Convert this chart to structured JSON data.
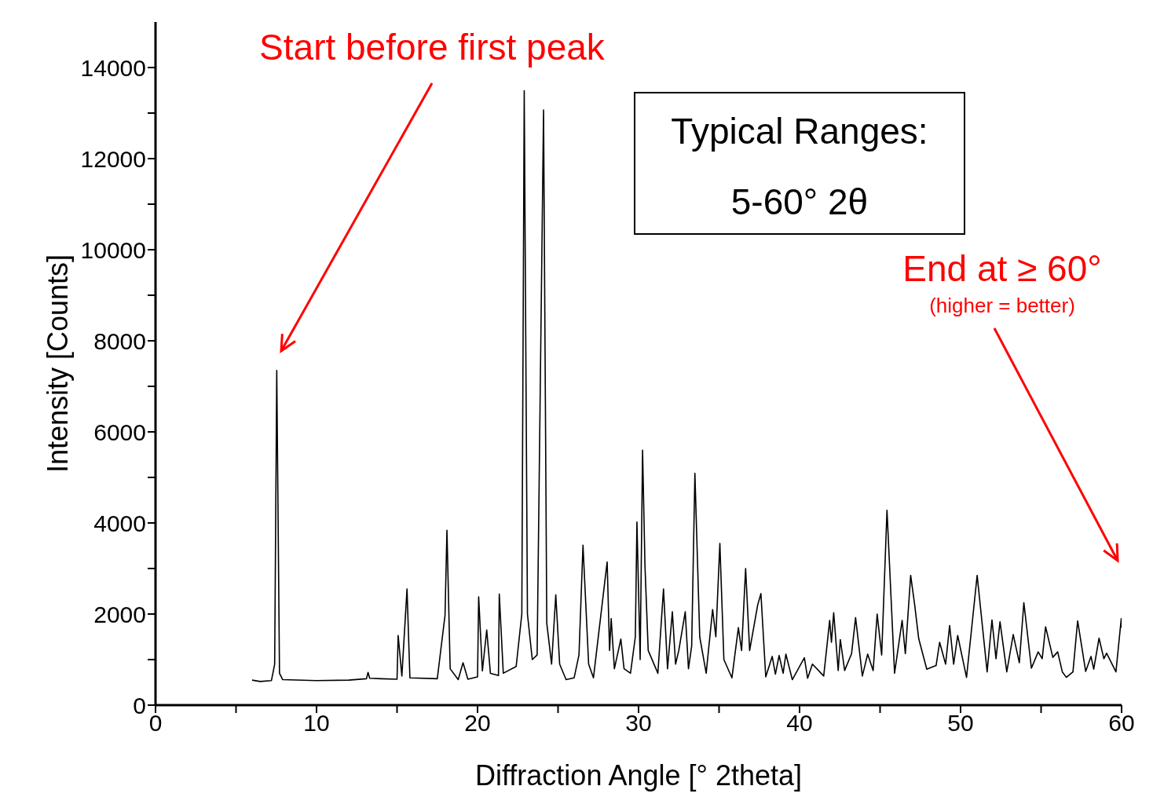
{
  "chart_data": {
    "type": "line",
    "xlabel": "Diffraction Angle [° 2theta]",
    "ylabel": "Intensity [Counts]",
    "xlim": [
      0,
      60
    ],
    "xticks": [
      0,
      {
        "value": 5,
        "label": null
      },
      10,
      {
        "value": 15,
        "label": null
      },
      20,
      {
        "value": 25,
        "label": null
      },
      30,
      {
        "value": 35,
        "label": null
      },
      40,
      {
        "value": 45,
        "label": null
      },
      50,
      {
        "value": 55,
        "label": null
      },
      60
    ],
    "ylim": [
      0,
      15000
    ],
    "yticks": [
      0,
      {
        "value": 1000,
        "label": null
      },
      2000,
      {
        "value": 3000,
        "label": null
      },
      4000,
      {
        "value": 5000,
        "label": null
      },
      6000,
      {
        "value": 7000,
        "label": null
      },
      8000,
      {
        "value": 9000,
        "label": null
      },
      10000,
      {
        "value": 11000,
        "label": null
      },
      12000,
      {
        "value": 13000,
        "label": null
      },
      14000
    ],
    "marker": "none",
    "line_style": "solid",
    "annotations": [
      "Start before first peak",
      "End at ≥ 60°",
      "(higher = better)",
      "Typical Ranges:",
      "5-60° 2θ"
    ],
    "series": [
      {
        "color": "#000000",
        "x": [
          6.0,
          6.5,
          7.2,
          7.4,
          7.53,
          7.7,
          7.9,
          10.0,
          12.0,
          13.1,
          13.2,
          13.3,
          14.0,
          15.0,
          15.07,
          15.3,
          15.62,
          15.8,
          17.5,
          17.98,
          18.1,
          18.3,
          18.8,
          19.1,
          19.4,
          20.0,
          20.07,
          20.3,
          20.57,
          20.8,
          21.3,
          21.35,
          21.6,
          22.4,
          22.75,
          22.9,
          23.1,
          23.4,
          23.7,
          24.1,
          24.3,
          24.6,
          24.86,
          25.1,
          25.5,
          26.0,
          26.3,
          26.55,
          26.9,
          27.2,
          27.9,
          28.05,
          28.2,
          28.3,
          28.5,
          28.9,
          29.1,
          29.5,
          29.8,
          29.9,
          30.1,
          30.25,
          30.4,
          30.6,
          31.2,
          31.55,
          31.8,
          32.1,
          32.3,
          32.5,
          32.9,
          33.1,
          33.3,
          33.5,
          33.8,
          34.2,
          34.6,
          34.8,
          35.05,
          35.3,
          35.8,
          36.2,
          36.4,
          36.65,
          36.9,
          37.2,
          37.4,
          37.6,
          37.9,
          38.3,
          38.5,
          38.73,
          38.98,
          39.15,
          39.55,
          40.3,
          40.5,
          40.8,
          41.5,
          41.87,
          41.98,
          42.12,
          42.4,
          42.53,
          42.8,
          43.23,
          43.48,
          43.9,
          44.23,
          44.57,
          44.82,
          45.1,
          45.43,
          45.9,
          46.37,
          46.57,
          46.9,
          47.15,
          47.4,
          47.9,
          48.48,
          48.7,
          49.07,
          49.32,
          49.57,
          49.82,
          50.37,
          51.03,
          51.65,
          51.95,
          52.2,
          52.45,
          52.87,
          53.27,
          53.65,
          53.93,
          54.4,
          54.82,
          55.07,
          55.28,
          55.73,
          56.03,
          56.32,
          56.57,
          56.98,
          57.27,
          57.77,
          58.1,
          58.27,
          58.6,
          58.9,
          59.07,
          59.65,
          59.98,
          60.0
        ],
        "values": [
          550,
          520,
          540,
          900,
          7350,
          700,
          560,
          540,
          550,
          580,
          720,
          590,
          580,
          570,
          1530,
          640,
          2550,
          600,
          580,
          1970,
          3840,
          800,
          560,
          930,
          570,
          620,
          2380,
          750,
          1650,
          700,
          650,
          2440,
          700,
          850,
          2000,
          13490,
          2000,
          1000,
          1100,
          13070,
          1800,
          900,
          2420,
          900,
          560,
          600,
          1100,
          3510,
          900,
          600,
          2700,
          3140,
          1200,
          1900,
          800,
          1450,
          800,
          700,
          1500,
          4020,
          1000,
          5600,
          3050,
          1200,
          700,
          2550,
          800,
          2050,
          900,
          1200,
          2050,
          800,
          1300,
          5090,
          1500,
          700,
          2100,
          1500,
          3550,
          1000,
          600,
          1700,
          1200,
          3000,
          1200,
          1800,
          2200,
          2450,
          620,
          1070,
          680,
          1090,
          700,
          1120,
          560,
          1040,
          590,
          900,
          640,
          1860,
          1380,
          2030,
          760,
          1440,
          760,
          1130,
          1920,
          640,
          1120,
          760,
          2000,
          1100,
          4280,
          700,
          1860,
          1130,
          2850,
          2200,
          1460,
          790,
          870,
          1380,
          900,
          1750,
          900,
          1530,
          610,
          2850,
          730,
          1870,
          1020,
          1830,
          730,
          1550,
          930,
          2250,
          810,
          1170,
          1020,
          1720,
          1050,
          1170,
          730,
          610,
          730,
          1850,
          740,
          1070,
          790,
          1470,
          1020,
          1140,
          730,
          1900,
          1700
        ]
      }
    ]
  }
}
